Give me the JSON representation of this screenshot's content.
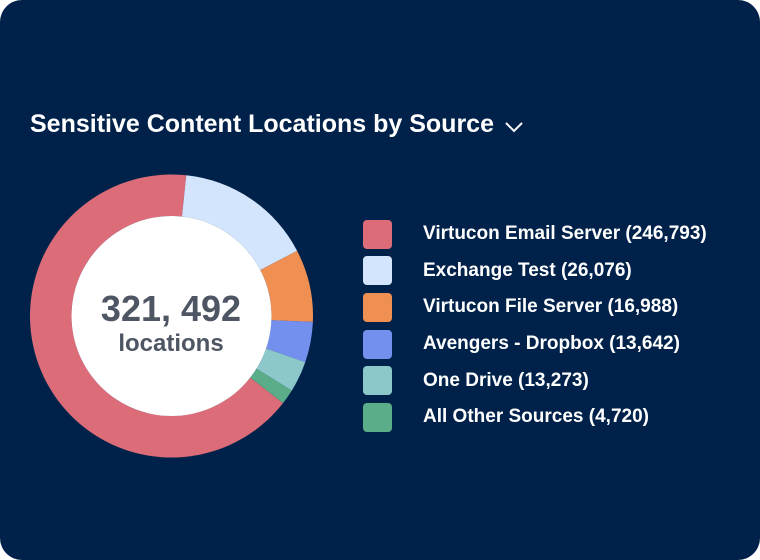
{
  "header": {
    "title": "Sensitive Content Locations by Source",
    "dropdown_icon": "chevron-down-icon"
  },
  "center": {
    "value": "321, 492",
    "label": "locations"
  },
  "colors": {
    "background": "#00224A",
    "center_text": "#4E5563"
  },
  "chart_data": {
    "type": "pie",
    "style": "donut",
    "title": "Sensitive Content Locations by Source",
    "total": 321492,
    "legend_placement": "right",
    "slices": [
      {
        "name": "Virtucon Email Server",
        "value": 246793,
        "label": "Virtucon Email Server (246,793)",
        "color": "#DB6C78"
      },
      {
        "name": "Exchange Test",
        "value": 26076,
        "label": "Exchange Test (26,076)",
        "color": "#D2E5FC"
      },
      {
        "name": "Virtucon File Server",
        "value": 16988,
        "label": "Virtucon File Server (16,988)",
        "color": "#F08F52"
      },
      {
        "name": "Avengers - Dropbox",
        "value": 13642,
        "label": "Avengers - Dropbox (13,642)",
        "color": "#7490EF"
      },
      {
        "name": "One Drive",
        "value": 13273,
        "label": "One Drive (13,273)",
        "color": "#8CC7C9"
      },
      {
        "name": "All Other Sources",
        "value": 4720,
        "label": "All Other Sources (4,720)",
        "color": "#5AAD88"
      }
    ]
  }
}
